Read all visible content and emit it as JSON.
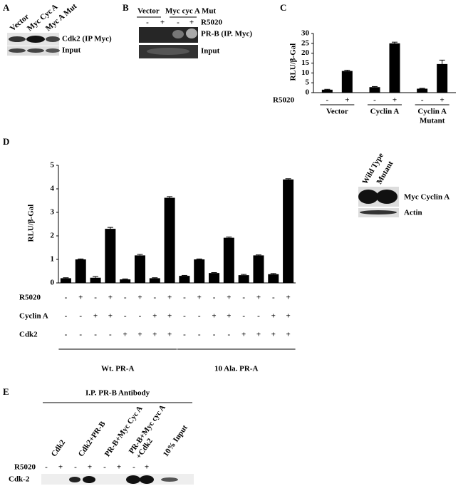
{
  "panel_a": {
    "letter": "A",
    "lanes": [
      "Vector",
      "Myc Cyc A",
      "Myc A Mut"
    ],
    "blots": [
      "Cdk2 (IP Myc)",
      "Input"
    ]
  },
  "panel_b": {
    "letter": "B",
    "groups": [
      "Vector",
      "Myc cyc A Mut"
    ],
    "treatment": "R5020",
    "signs": [
      "-",
      "+",
      "-",
      "+"
    ],
    "blots": [
      "PR-B (IP. Myc)",
      "Input"
    ]
  },
  "chart_data": [
    {
      "type": "bar",
      "letter": "C",
      "ylabel": "RLU/β-Gal",
      "ylim": [
        0,
        30
      ],
      "yticks": [
        0,
        5,
        10,
        15,
        20,
        25,
        30
      ],
      "color": "#000000",
      "values": [
        1.5,
        11,
        2.8,
        25,
        2,
        14.5
      ],
      "errors": [
        0.2,
        0.4,
        0.3,
        0.6,
        0.2,
        2
      ],
      "rows": [
        {
          "name": "R5020",
          "signs": [
            "-",
            "+",
            "-",
            "+",
            "-",
            "+"
          ]
        }
      ],
      "groups": [
        [
          "Vector"
        ],
        [
          "Cyclin A"
        ],
        [
          "Cyclin A",
          "Mutant"
        ]
      ]
    },
    {
      "type": "bar",
      "letter": "D",
      "ylabel": "RLU/β-Gal",
      "ylim": [
        0,
        5
      ],
      "yticks": [
        0,
        1,
        2,
        3,
        4,
        5
      ],
      "color": "#000000",
      "values": [
        0.2,
        1.0,
        0.22,
        2.3,
        0.15,
        1.17,
        0.2,
        3.62,
        0.3,
        1.0,
        0.42,
        1.92,
        0.33,
        1.17,
        0.37,
        4.4
      ],
      "errors": [
        0.02,
        0.02,
        0.05,
        0.06,
        0.02,
        0.04,
        0.02,
        0.05,
        0.02,
        0.02,
        0.02,
        0.03,
        0.03,
        0.02,
        0.03,
        0.03
      ],
      "rows": [
        {
          "name": "R5020",
          "signs": [
            "-",
            "+",
            "-",
            "+",
            "-",
            "+",
            "-",
            "+",
            "-",
            "+",
            "-",
            "+",
            "-",
            "+",
            "-",
            "+"
          ]
        },
        {
          "name": "Cyclin A",
          "signs": [
            "-",
            "-",
            "+",
            "+",
            "-",
            "-",
            "+",
            "+",
            "-",
            "-",
            "+",
            "+",
            "-",
            "-",
            "+",
            "+"
          ]
        },
        {
          "name": "Cdk2",
          "signs": [
            "-",
            "-",
            "-",
            "-",
            "+",
            "+",
            "+",
            "+",
            "-",
            "-",
            "-",
            "-",
            "+",
            "+",
            "+",
            "+"
          ]
        }
      ],
      "groups": [
        [
          "Wt. PR-A"
        ],
        [
          "10 Ala. PR-A"
        ]
      ]
    }
  ],
  "inset": {
    "lanes": [
      "Wild Type",
      "Mutant"
    ],
    "blots": [
      "Myc Cyclin A",
      "Actin"
    ]
  },
  "panel_e": {
    "letter": "E",
    "header": "I.P. PR-B Antibody",
    "lanes": [
      "Cdk2",
      "Cdk2+PR-B",
      "PR-B+Myc Cyc A",
      "PR-B+Myc cyc A",
      "+Cdk2",
      "10% Input"
    ],
    "treatment": "R5020",
    "signs": [
      "-",
      "+",
      "-",
      "+",
      "-",
      "+",
      "-",
      "+"
    ],
    "blot": "Cdk-2"
  }
}
